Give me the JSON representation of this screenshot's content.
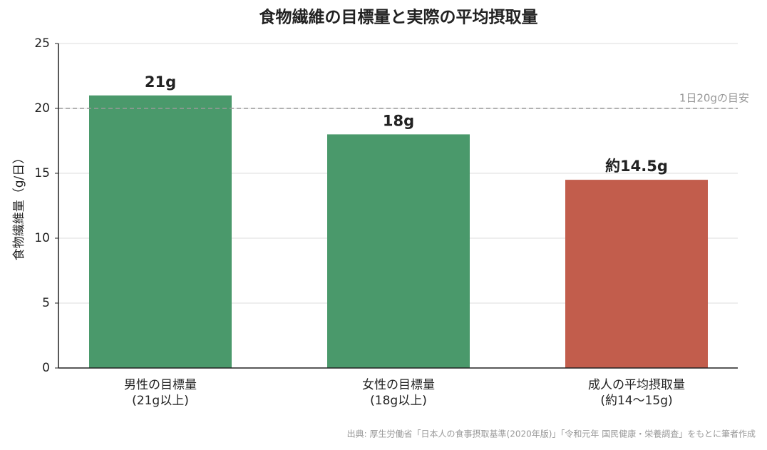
{
  "chart_data": {
    "type": "bar",
    "title": "食物繊維の目標量と実際の平均摂取量",
    "y_label": "食物繊維量（g/日）",
    "categories": [
      "男性の目標量\n(21g以上)",
      "女性の目標量\n(18g以上)",
      "成人の平均摂取量\n(約14〜15g)"
    ],
    "values": [
      21,
      18,
      14.5
    ],
    "value_labels": [
      "21g",
      "18g",
      "約14.5g"
    ],
    "colors": [
      "#4a996b",
      "#4a996b",
      "#c25d4c"
    ],
    "ylim": [
      0,
      25
    ],
    "yticks": [
      0,
      5,
      10,
      15,
      20,
      25
    ],
    "grid": true,
    "reference_line": {
      "value": 20,
      "label": "1日20gの目安",
      "color": "#999999"
    },
    "source": "出典: 厚生労働省「日本人の食事摂取基準(2020年版)」「令和元年 国民健康・栄養調査」をもとに筆者作成"
  }
}
